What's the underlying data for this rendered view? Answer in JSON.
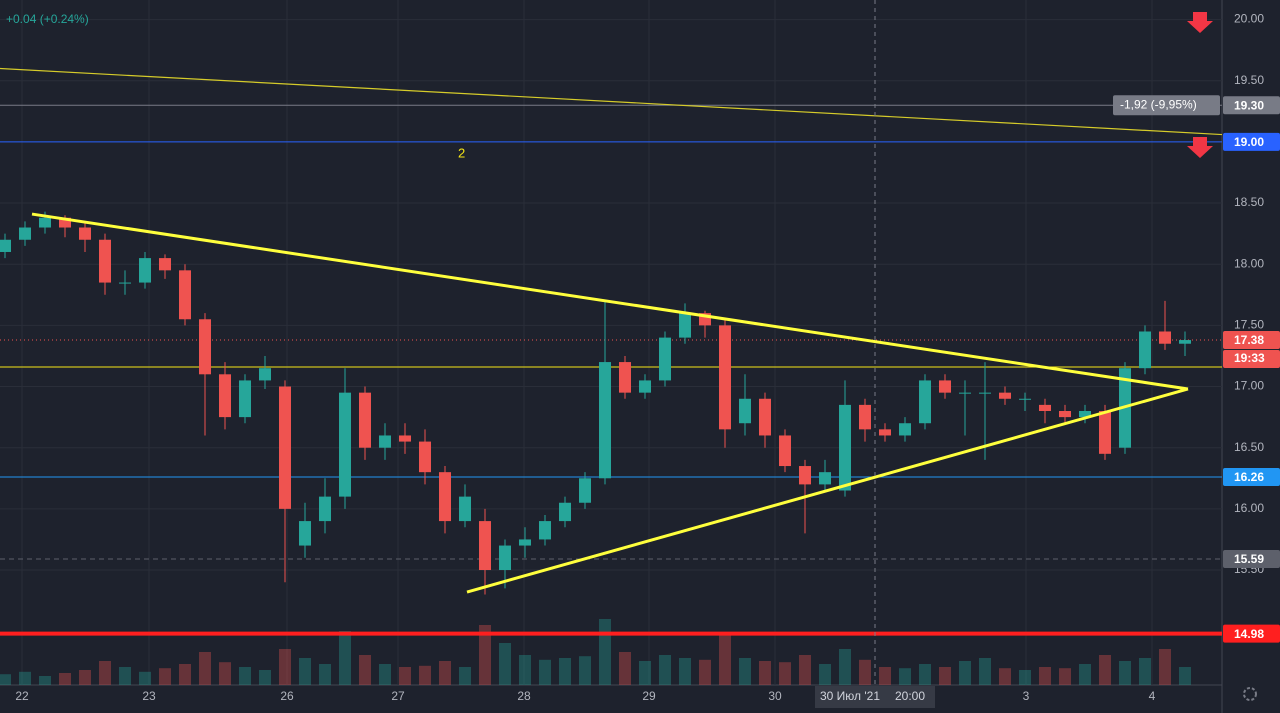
{
  "chart_data": {
    "type": "candlestick",
    "change_text": "+0.04 (+0.24%)",
    "annotation": "2",
    "measure_label": "-1,92 (-9,95%)",
    "crosshair": {
      "x": 43.5,
      "date_label": "30 Июл '21",
      "time_label": "20:00"
    },
    "countdown": "19:33",
    "up_color": "#26a69a",
    "down_color": "#ef5350",
    "xlim": [
      -0.25,
      60.85
    ],
    "ylim": [
      14.56,
      20.16
    ],
    "xticks": [
      {
        "value": 0.85,
        "label": "22"
      },
      {
        "value": 7.2,
        "label": "23"
      },
      {
        "value": 14.1,
        "label": "26"
      },
      {
        "value": 19.65,
        "label": "27"
      },
      {
        "value": 25.95,
        "label": "28"
      },
      {
        "value": 32.2,
        "label": "29"
      },
      {
        "value": 38.5,
        "label": "30"
      },
      {
        "value": 51.05,
        "label": "3"
      },
      {
        "value": 57.35,
        "label": "4"
      }
    ],
    "yticks": [
      {
        "value": 20,
        "label": "20.00"
      },
      {
        "value": 19.5,
        "label": "19.50"
      },
      {
        "value": 18.5,
        "label": "18.50"
      },
      {
        "value": 18,
        "label": "18.00"
      },
      {
        "value": 17.5,
        "label": "17.50"
      },
      {
        "value": 17,
        "label": "17.00"
      },
      {
        "value": 16.5,
        "label": "16.50"
      },
      {
        "value": 16,
        "label": "16.00"
      },
      {
        "value": 15.5,
        "label": "15.50"
      }
    ],
    "grid": true,
    "x": [
      0,
      1,
      2,
      3,
      4,
      5,
      6,
      7,
      8,
      9,
      10,
      11,
      12,
      13,
      14,
      15,
      16,
      17,
      18,
      19,
      20,
      21,
      22,
      23,
      24,
      25,
      26,
      27,
      28,
      29,
      30,
      31,
      32,
      33,
      34,
      35,
      36,
      37,
      38,
      39,
      40,
      41,
      42,
      43,
      44,
      45,
      46,
      47,
      48,
      49,
      50,
      51,
      52,
      53,
      54,
      55,
      56,
      57,
      58,
      59
    ],
    "open": [
      18.1,
      18.2,
      18.3,
      18.38,
      18.3,
      18.2,
      17.85,
      17.85,
      18.05,
      17.95,
      17.55,
      17.1,
      16.75,
      17.05,
      17.0,
      15.7,
      15.9,
      16.1,
      16.95,
      16.5,
      16.6,
      16.55,
      16.3,
      15.9,
      15.9,
      15.5,
      15.7,
      15.75,
      15.9,
      16.05,
      16.25,
      17.2,
      16.95,
      17.05,
      17.4,
      17.6,
      17.5,
      16.7,
      16.9,
      16.6,
      16.35,
      16.2,
      16.15,
      16.85,
      16.65,
      16.6,
      16.7,
      17.05,
      16.95,
      16.95,
      16.95,
      16.9,
      16.85,
      16.8,
      16.75,
      16.8,
      16.5,
      17.15,
      17.45,
      17.35
    ],
    "high": [
      18.25,
      18.35,
      18.43,
      18.4,
      18.35,
      18.25,
      17.95,
      18.1,
      18.08,
      18.0,
      17.6,
      17.2,
      17.1,
      17.25,
      17.05,
      16.05,
      16.25,
      17.15,
      17.0,
      16.7,
      16.7,
      16.65,
      16.35,
      16.2,
      16.0,
      15.75,
      15.85,
      15.95,
      16.1,
      16.3,
      17.7,
      17.25,
      17.1,
      17.45,
      17.68,
      17.62,
      17.55,
      17.1,
      16.95,
      16.65,
      16.4,
      16.4,
      17.05,
      16.9,
      16.7,
      16.75,
      17.1,
      17.1,
      17.05,
      17.2,
      17.0,
      16.95,
      16.9,
      16.85,
      16.85,
      16.85,
      17.2,
      17.5,
      17.7,
      17.45
    ],
    "low": [
      18.05,
      18.15,
      18.25,
      18.22,
      18.1,
      17.75,
      17.75,
      17.8,
      17.88,
      17.5,
      16.6,
      16.65,
      16.7,
      16.98,
      15.4,
      15.6,
      15.8,
      16.0,
      16.4,
      16.4,
      16.45,
      16.2,
      15.8,
      15.85,
      15.3,
      15.35,
      15.6,
      15.7,
      15.85,
      16.0,
      16.2,
      16.9,
      16.9,
      17.0,
      17.35,
      17.4,
      16.5,
      16.6,
      16.5,
      16.3,
      15.8,
      16.15,
      16.1,
      16.55,
      16.55,
      16.55,
      16.65,
      16.9,
      16.6,
      16.4,
      16.85,
      16.8,
      16.7,
      16.7,
      16.7,
      16.4,
      16.45,
      17.1,
      17.3,
      17.25
    ],
    "close": [
      18.2,
      18.3,
      18.38,
      18.3,
      18.2,
      17.85,
      17.85,
      18.05,
      17.95,
      17.55,
      17.1,
      16.75,
      17.05,
      17.15,
      16.0,
      15.9,
      16.1,
      16.95,
      16.5,
      16.6,
      16.55,
      16.3,
      15.9,
      16.1,
      15.5,
      15.7,
      15.75,
      15.9,
      16.05,
      16.25,
      17.2,
      16.95,
      17.05,
      17.4,
      17.6,
      17.5,
      16.65,
      16.9,
      16.6,
      16.35,
      16.2,
      16.3,
      16.85,
      16.65,
      16.6,
      16.7,
      17.05,
      16.95,
      16.95,
      16.95,
      16.9,
      16.9,
      16.8,
      16.75,
      16.8,
      16.45,
      17.15,
      17.45,
      17.35,
      17.38
    ],
    "volume": [
      18,
      22,
      15,
      20,
      25,
      40,
      30,
      22,
      28,
      35,
      55,
      38,
      30,
      25,
      60,
      45,
      35,
      90,
      50,
      35,
      30,
      32,
      40,
      30,
      100,
      70,
      50,
      42,
      45,
      48,
      110,
      55,
      40,
      50,
      45,
      42,
      85,
      45,
      40,
      38,
      50,
      35,
      60,
      42,
      30,
      28,
      35,
      30,
      40,
      45,
      28,
      25,
      30,
      28,
      35,
      50,
      40,
      45,
      60,
      30
    ],
    "levels": [
      {
        "value": 19.3,
        "label": "19.30",
        "color": "#787b86",
        "style": "solid"
      },
      {
        "value": 19.0,
        "label": "19.00",
        "color": "#2962ff",
        "style": "solid"
      },
      {
        "value": 17.16,
        "color": "#f5e616",
        "style": "solid"
      },
      {
        "value": 17.38,
        "label": "17.38",
        "color": "#ef5350",
        "style": "dotted"
      },
      {
        "value": 16.26,
        "label": "16.26",
        "color": "#2196f3",
        "style": "solid"
      },
      {
        "value": 15.59,
        "label": "15.59",
        "color": "#5d606b",
        "style": "dashed"
      },
      {
        "value": 14.98,
        "label": "14.98",
        "color": "#ff1f1f",
        "style": "thick"
      }
    ],
    "trendlines": [
      {
        "x": [
          -0.25,
          60.85
        ],
        "y": [
          19.6,
          19.06
        ],
        "color": "#d6cc2a",
        "width": 1.2
      },
      {
        "x": [
          1.35,
          59.15
        ],
        "y": [
          18.41,
          16.98
        ],
        "color": "#ffff3d",
        "width": 3
      },
      {
        "x": [
          23.1,
          59.15
        ],
        "y": [
          15.32,
          16.98
        ],
        "color": "#ffff3d",
        "width": 3
      }
    ]
  }
}
